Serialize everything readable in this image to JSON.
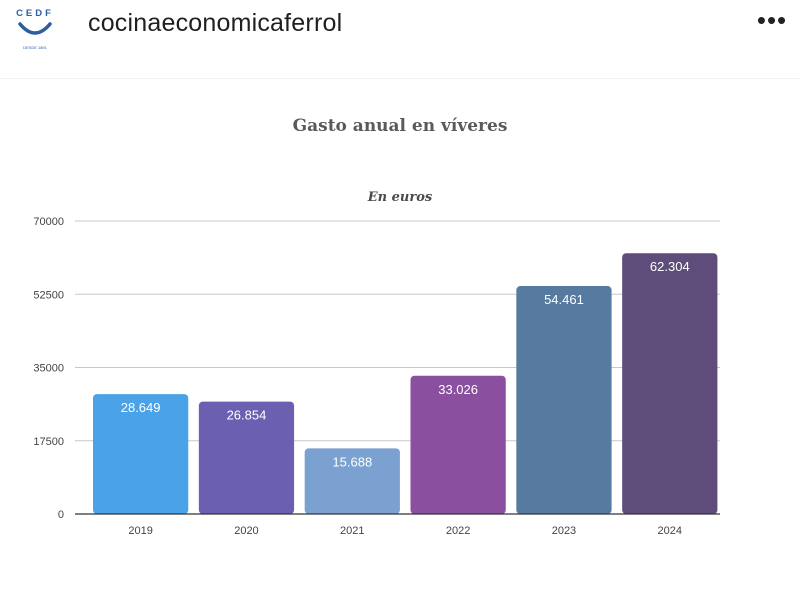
{
  "post": {
    "username": "cocinaeconomicaferrol",
    "avatar_text_top": "CEDF",
    "avatar_text_bottom": "DESDE 1891",
    "more_icon": "more-options-icon",
    "more_label": "•••"
  },
  "chart_data": {
    "type": "bar",
    "title": "Gasto anual en víveres",
    "subtitle": "En euros",
    "categories": [
      "2019",
      "2020",
      "2021",
      "2022",
      "2023",
      "2024"
    ],
    "values": [
      28649,
      26854,
      15688,
      33026,
      54461,
      62304
    ],
    "value_labels": [
      "28.649",
      "26.854",
      "15.688",
      "33.026",
      "54.461",
      "62.304"
    ],
    "colors": [
      "#4aa3e8",
      "#6a5fb1",
      "#7aa1d0",
      "#8a4f9f",
      "#567aa0",
      "#5e4c7a"
    ],
    "ylim": [
      0,
      70000
    ],
    "yticks": [
      0,
      17500,
      35000,
      52500,
      70000
    ],
    "xlabel": "",
    "ylabel": "",
    "grid": true,
    "legend": "none"
  }
}
